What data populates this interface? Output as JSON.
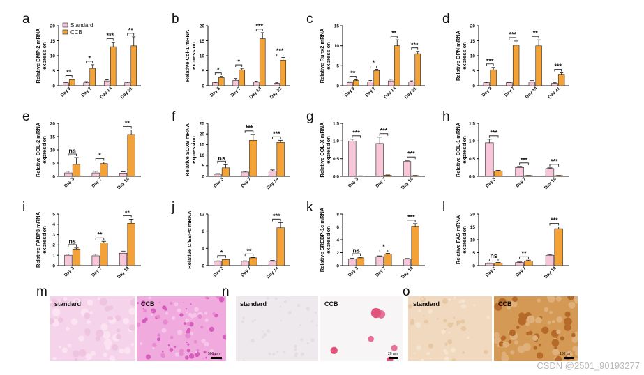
{
  "legend": {
    "standard": "Standard",
    "ccb": "CCB"
  },
  "colors": {
    "standard": "#f7c6d8",
    "ccb": "#f3a237",
    "stroke": "#222222"
  },
  "chart_data": [
    {
      "letter": "a",
      "type": "bar",
      "ylabel": [
        "Relative BMP-2 mRNA",
        "expression"
      ],
      "categories": [
        "Day 3",
        "Day 7",
        "Day 14",
        "Day 21"
      ],
      "ylim": [
        0,
        20
      ],
      "yticks": [
        0,
        5,
        10,
        15,
        20
      ],
      "series": [
        {
          "name": "Standard",
          "values": [
            1.0,
            1.0,
            1.6,
            1.0
          ],
          "errors": [
            0.2,
            0.4,
            0.4,
            0.3
          ]
        },
        {
          "name": "CCB",
          "values": [
            2.0,
            5.8,
            13.0,
            13.3
          ],
          "errors": [
            0.2,
            1.2,
            1.5,
            3.0
          ]
        }
      ],
      "significance": [
        "**",
        "*",
        "***",
        "**"
      ]
    },
    {
      "letter": "b",
      "type": "bar",
      "ylabel": [
        "Relative Col-1 mRNA",
        "expression"
      ],
      "categories": [
        "Day 3",
        "Day 7",
        "Day 14",
        "Day 21"
      ],
      "ylim": [
        0,
        20
      ],
      "yticks": [
        0,
        5,
        10,
        15,
        20
      ],
      "series": [
        {
          "name": "Standard",
          "values": [
            1.0,
            1.8,
            1.2,
            0.8
          ],
          "errors": [
            0.2,
            0.6,
            0.3,
            0.2
          ]
        },
        {
          "name": "CCB",
          "values": [
            2.7,
            5.3,
            15.7,
            8.5
          ],
          "errors": [
            0.4,
            0.5,
            2.0,
            0.9
          ]
        }
      ],
      "significance": [
        "*",
        "*",
        "***",
        "***"
      ]
    },
    {
      "letter": "c",
      "type": "bar",
      "ylabel": [
        "Relative Runx2 mRNA",
        "expression"
      ],
      "categories": [
        "Day 3",
        "Day 7",
        "Day 14",
        "Day 21"
      ],
      "ylim": [
        0,
        15
      ],
      "yticks": [
        0,
        5,
        10,
        15
      ],
      "series": [
        {
          "name": "Standard",
          "values": [
            0.8,
            1.0,
            1.2,
            1.0
          ],
          "errors": [
            0.2,
            0.3,
            0.4,
            0.2
          ]
        },
        {
          "name": "CCB",
          "values": [
            1.3,
            3.8,
            10.0,
            8.0
          ],
          "errors": [
            0.2,
            0.3,
            1.5,
            0.6
          ]
        }
      ],
      "significance": [
        "**",
        "*",
        "**",
        "***"
      ]
    },
    {
      "letter": "d",
      "type": "bar",
      "ylabel": [
        "Relative OPN mRNA",
        "expression"
      ],
      "categories": [
        "Day 3",
        "Day 7",
        "Day 14",
        "Day 21"
      ],
      "ylim": [
        0,
        20
      ],
      "yticks": [
        0,
        5,
        10,
        15,
        20
      ],
      "series": [
        {
          "name": "Standard",
          "values": [
            1.0,
            1.0,
            1.2,
            0.8
          ],
          "errors": [
            0.2,
            0.2,
            0.5,
            0.2
          ]
        },
        {
          "name": "CCB",
          "values": [
            5.3,
            13.5,
            13.3,
            3.8
          ],
          "errors": [
            0.8,
            1.4,
            2.0,
            0.5
          ]
        }
      ],
      "significance": [
        "***",
        "***",
        "**",
        "***"
      ]
    },
    {
      "letter": "e",
      "type": "bar",
      "ylabel": [
        "Relative COL-2 mRNA",
        "expression"
      ],
      "categories": [
        "Day 3",
        "Day 7",
        "Day 14"
      ],
      "ylim": [
        0,
        20
      ],
      "yticks": [
        0,
        5,
        10,
        15,
        20
      ],
      "series": [
        {
          "name": "Standard",
          "values": [
            1.3,
            1.3,
            1.2
          ],
          "errors": [
            0.6,
            0.6,
            0.5
          ]
        },
        {
          "name": "CCB",
          "values": [
            4.5,
            4.8,
            15.8
          ],
          "errors": [
            2.6,
            0.6,
            1.7
          ]
        }
      ],
      "significance": [
        "ns",
        "*",
        "**"
      ]
    },
    {
      "letter": "f",
      "type": "bar",
      "ylabel": [
        "Relative SOX9 mRNA",
        "expression"
      ],
      "categories": [
        "Day 3",
        "Day 7",
        "Day 14"
      ],
      "ylim": [
        0,
        25
      ],
      "yticks": [
        0,
        5,
        10,
        15,
        20,
        25
      ],
      "series": [
        {
          "name": "Standard",
          "values": [
            1.0,
            2.0,
            2.5
          ],
          "errors": [
            0.3,
            0.4,
            0.5
          ]
        },
        {
          "name": "CCB",
          "values": [
            4.0,
            17.0,
            16.0
          ],
          "errors": [
            1.5,
            2.8,
            1.0
          ]
        }
      ],
      "significance": [
        "ns",
        "***",
        "***"
      ]
    },
    {
      "letter": "g",
      "type": "bar",
      "ylabel": [
        "Relative COL-X mRNA",
        "expression"
      ],
      "categories": [
        "Day 3",
        "Day 7",
        "Day 14"
      ],
      "ylim": [
        0,
        1.5
      ],
      "yticks": [
        0.0,
        0.5,
        1.0,
        1.5
      ],
      "series": [
        {
          "name": "Standard",
          "values": [
            1.0,
            0.93,
            0.42
          ],
          "errors": [
            0.05,
            0.18,
            0.03
          ]
        },
        {
          "name": "CCB",
          "values": [
            0.01,
            0.03,
            0.02
          ],
          "errors": [
            0.005,
            0.01,
            0.005
          ]
        }
      ],
      "significance": [
        "***",
        "***",
        "***"
      ]
    },
    {
      "letter": "h",
      "type": "bar",
      "ylabel": [
        "Relative COL-1 mRNA",
        "expression"
      ],
      "categories": [
        "Day 3",
        "Day 7",
        "Day 14"
      ],
      "ylim": [
        0,
        1.5
      ],
      "yticks": [
        0.0,
        0.5,
        1.0,
        1.5
      ],
      "series": [
        {
          "name": "Standard",
          "values": [
            0.95,
            0.25,
            0.22
          ],
          "errors": [
            0.1,
            0.03,
            0.02
          ]
        },
        {
          "name": "CCB",
          "values": [
            0.15,
            0.02,
            0.02
          ],
          "errors": [
            0.02,
            0.005,
            0.005
          ]
        }
      ],
      "significance": [
        "***",
        "***",
        "***"
      ]
    },
    {
      "letter": "i",
      "type": "bar",
      "ylabel": [
        "Relative FABP3 mRNA",
        "expression"
      ],
      "categories": [
        "Day 3",
        "Day 7",
        "Day 14"
      ],
      "ylim": [
        0,
        5
      ],
      "yticks": [
        0,
        1,
        2,
        3,
        4,
        5
      ],
      "series": [
        {
          "name": "Standard",
          "values": [
            1.0,
            0.95,
            1.2
          ],
          "errors": [
            0.1,
            0.15,
            0.2
          ]
        },
        {
          "name": "CCB",
          "values": [
            1.6,
            2.2,
            4.1
          ],
          "errors": [
            0.1,
            0.15,
            0.4
          ]
        }
      ],
      "significance": [
        "ns",
        "**",
        "**"
      ]
    },
    {
      "letter": "j",
      "type": "bar",
      "ylabel": [
        "Relative C/EBPα mRNA"
      ],
      "categories": [
        "Day 3",
        "Day 7",
        "Day 14"
      ],
      "ylim": [
        0,
        12
      ],
      "yticks": [
        0,
        4,
        8,
        12
      ],
      "series": [
        {
          "name": "Standard",
          "values": [
            1.0,
            1.0,
            1.0
          ],
          "errors": [
            0.1,
            0.1,
            0.2
          ]
        },
        {
          "name": "CCB",
          "values": [
            1.4,
            1.8,
            8.8
          ],
          "errors": [
            0.1,
            0.1,
            1.2
          ]
        }
      ],
      "significance": [
        "*",
        "**",
        "***"
      ]
    },
    {
      "letter": "k",
      "type": "bar",
      "ylabel": [
        "Relative SREBP-1c mRNA",
        "expression"
      ],
      "categories": [
        "Day 3",
        "Day 7",
        "Day 14"
      ],
      "ylim": [
        0,
        8
      ],
      "yticks": [
        0,
        2,
        4,
        6,
        8
      ],
      "series": [
        {
          "name": "Standard",
          "values": [
            1.0,
            1.4,
            1.0
          ],
          "errors": [
            0.15,
            0.1,
            0.1
          ]
        },
        {
          "name": "CCB",
          "values": [
            1.2,
            1.8,
            6.1
          ],
          "errors": [
            0.1,
            0.1,
            0.4
          ]
        }
      ],
      "significance": [
        "ns",
        "*",
        "***"
      ]
    },
    {
      "letter": "l",
      "type": "bar",
      "ylabel": [
        "Relative FAS mRNA",
        "expression"
      ],
      "categories": [
        "Day 3",
        "Day 7",
        "Day 14"
      ],
      "ylim": [
        0,
        20
      ],
      "yticks": [
        0,
        5,
        10,
        15,
        20
      ],
      "series": [
        {
          "name": "Standard",
          "values": [
            0.8,
            1.2,
            4.0
          ],
          "errors": [
            0.2,
            0.2,
            0.3
          ]
        },
        {
          "name": "CCB",
          "values": [
            1.0,
            1.8,
            14.3
          ],
          "errors": [
            0.2,
            0.3,
            0.7
          ]
        }
      ],
      "significance": [
        "ns",
        "**",
        "***"
      ]
    }
  ],
  "micrographs": [
    {
      "letter": "m",
      "left_label": "standard",
      "right_label": "CCB",
      "scale": "500 μm"
    },
    {
      "letter": "n",
      "left_label": "standard",
      "right_label": "CCB",
      "scale": "20 μm"
    },
    {
      "letter": "o",
      "left_label": "standard",
      "right_label": "CCB",
      "scale": "100 μm"
    }
  ],
  "watermark": "CSDN @2501_90193277"
}
